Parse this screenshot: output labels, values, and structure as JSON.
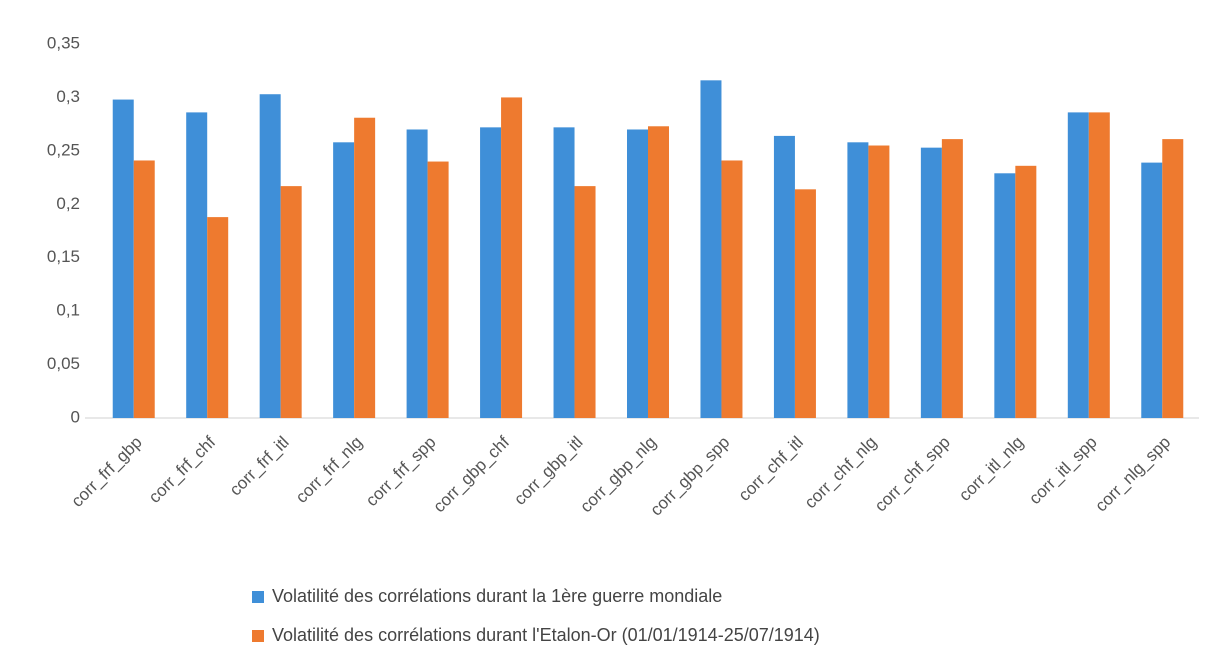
{
  "chart_data": {
    "type": "bar",
    "categories": [
      "corr_frf_gbp",
      "corr_frf_chf",
      "corr_frf_itl",
      "corr_frf_nlg",
      "corr_frf_spp",
      "corr_gbp_chf",
      "corr_gbp_itl",
      "corr_gbp_nlg",
      "corr_gbp_spp",
      "corr_chf_itl",
      "corr_chf_nlg",
      "corr_chf_spp",
      "corr_itl_nlg",
      "corr_itl_spp",
      "corr_nlg_spp"
    ],
    "series": [
      {
        "name": "Volatilité  des corrélations durant la 1ère guerre mondiale",
        "color": "#3f8fd8",
        "values": [
          0.298,
          0.286,
          0.303,
          0.258,
          0.27,
          0.272,
          0.272,
          0.27,
          0.316,
          0.264,
          0.258,
          0.253,
          0.229,
          0.286,
          0.239
        ]
      },
      {
        "name": "Volatilité  des corrélations durant l'Etalon-Or  (01/01/1914-25/07/1914)",
        "color": "#ee7a2f",
        "values": [
          0.241,
          0.188,
          0.217,
          0.281,
          0.24,
          0.3,
          0.217,
          0.273,
          0.241,
          0.214,
          0.255,
          0.261,
          0.236,
          0.286,
          0.261
        ]
      }
    ],
    "ylim": [
      0,
      0.35
    ],
    "yticks": [
      {
        "value": 0,
        "label": "0"
      },
      {
        "value": 0.05,
        "label": "0,05"
      },
      {
        "value": 0.1,
        "label": "0,1"
      },
      {
        "value": 0.15,
        "label": "0,15"
      },
      {
        "value": 0.2,
        "label": "0,2"
      },
      {
        "value": 0.25,
        "label": "0,25"
      },
      {
        "value": 0.3,
        "label": "0,3"
      },
      {
        "value": 0.35,
        "label": "0,35"
      }
    ],
    "grid": false
  }
}
